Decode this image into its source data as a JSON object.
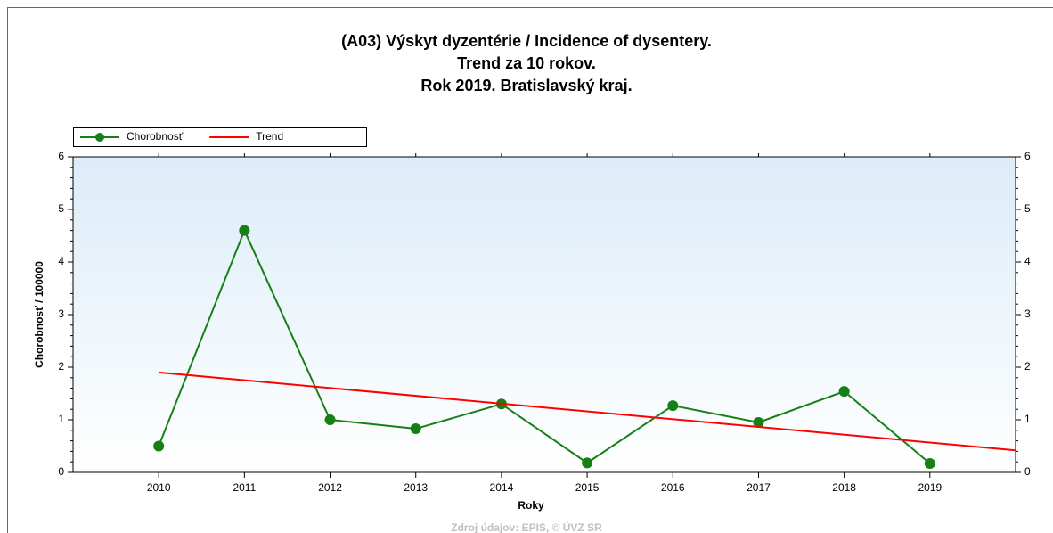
{
  "chart_data": {
    "type": "line",
    "title": [
      "(A03) Výskyt dyzentérie / Incidence of dysentery.",
      "Trend za 10 rokov.",
      "Rok 2019. Bratislavský kraj."
    ],
    "x_label": "Roky",
    "y_label": "Chorobnosť / 100000",
    "source": "Zdroj údajov: EPIS, © ÚVZ SR",
    "xlim": [
      2009,
      2020
    ],
    "xticks": [
      2010,
      2011,
      2012,
      2013,
      2014,
      2015,
      2016,
      2017,
      2018,
      2019
    ],
    "ylim": [
      0,
      6
    ],
    "yticks": [
      0,
      1,
      2,
      3,
      4,
      5,
      6
    ],
    "y2lim": [
      0,
      6
    ],
    "y2ticks": [
      0,
      1,
      2,
      3,
      4,
      5,
      6
    ],
    "legend": "top-left",
    "series": [
      {
        "name": "Chorobnosť",
        "color": "#168016",
        "markers": true,
        "x": [
          2010,
          2011,
          2012,
          2013,
          2014,
          2015,
          2016,
          2017,
          2018,
          2019
        ],
        "values": [
          0.5,
          4.6,
          1.0,
          0.83,
          1.3,
          0.18,
          1.27,
          0.95,
          1.54,
          0.17
        ]
      },
      {
        "name": "Trend",
        "color": "#ff0000",
        "markers": false,
        "x": [
          2010,
          2020
        ],
        "values": [
          1.9,
          0.42
        ]
      }
    ]
  }
}
